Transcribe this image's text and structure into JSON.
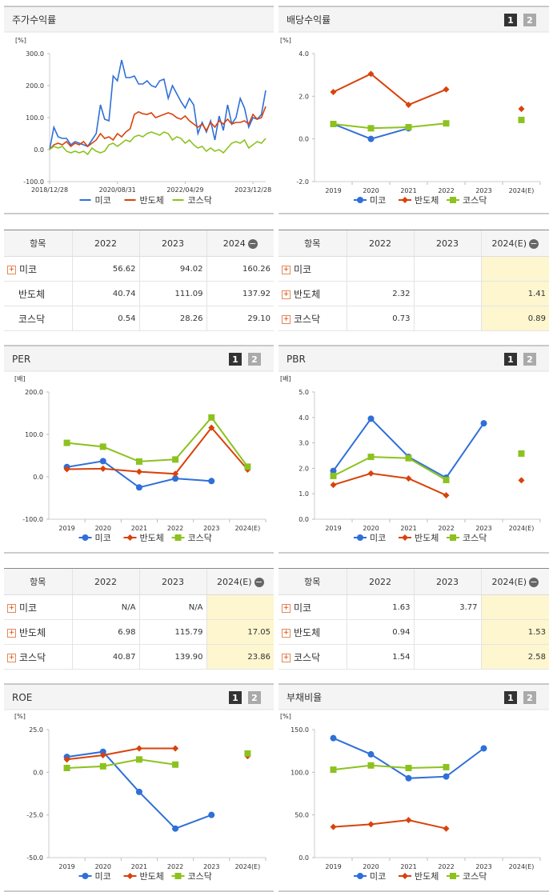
{
  "page_buttons": [
    "1",
    "2"
  ],
  "chart_data": [
    {
      "type": "line",
      "title": "주가수익률",
      "unit": "[%]",
      "xlim": [
        0,
        51
      ],
      "xticks": [
        {
          "value": 0,
          "label": "2018/12/28"
        },
        {
          "value": 16,
          "label": "2020/08/31"
        },
        {
          "value": 32,
          "label": "2022/04/29"
        },
        {
          "value": 48,
          "label": "2023/12/28"
        }
      ],
      "ylim": [
        -100,
        300
      ],
      "yticks": [
        {
          "value": -100,
          "label": "-100.0"
        },
        {
          "value": 0,
          "label": "0.0"
        },
        {
          "value": 100,
          "label": "100.0"
        },
        {
          "value": 200,
          "label": "200.0"
        },
        {
          "value": 300,
          "label": "300.0"
        }
      ],
      "series": [
        {
          "name": "미코",
          "color": "#2f6fd8",
          "values": [
            0,
            70,
            40,
            35,
            35,
            15,
            25,
            20,
            15,
            10,
            30,
            50,
            140,
            95,
            90,
            230,
            215,
            280,
            225,
            225,
            230,
            205,
            205,
            215,
            200,
            195,
            215,
            220,
            160,
            200,
            175,
            150,
            130,
            160,
            140,
            50,
            85,
            55,
            90,
            30,
            105,
            60,
            140,
            80,
            100,
            160,
            130,
            70,
            100,
            95,
            110,
            185
          ]
        },
        {
          "name": "반도체",
          "color": "#d9420b",
          "values": [
            0,
            15,
            20,
            15,
            25,
            10,
            20,
            15,
            25,
            10,
            20,
            30,
            50,
            35,
            40,
            30,
            50,
            40,
            55,
            65,
            110,
            118,
            112,
            110,
            115,
            100,
            105,
            110,
            115,
            110,
            100,
            95,
            105,
            90,
            80,
            70,
            80,
            60,
            85,
            70,
            90,
            80,
            95,
            80,
            85,
            85,
            90,
            80,
            110,
            95,
            100,
            135
          ]
        },
        {
          "name": "코스닥",
          "color": "#8cc21f",
          "values": [
            0,
            10,
            5,
            10,
            -5,
            -10,
            -5,
            -10,
            -5,
            -15,
            5,
            -5,
            -10,
            -5,
            15,
            20,
            10,
            20,
            30,
            25,
            40,
            45,
            40,
            50,
            55,
            50,
            45,
            55,
            50,
            30,
            40,
            35,
            20,
            30,
            15,
            5,
            10,
            -5,
            5,
            -5,
            0,
            -10,
            5,
            20,
            25,
            20,
            30,
            5,
            15,
            25,
            20,
            35
          ]
        }
      ]
    },
    {
      "type": "line",
      "title": "배당수익률",
      "unit": "[%]",
      "categories": [
        "2019",
        "2020",
        "2021",
        "2022",
        "2023",
        "2024(E)"
      ],
      "ylim": [
        -2,
        4
      ],
      "yticks": [
        {
          "value": -2,
          "label": "-2.0"
        },
        {
          "value": 0,
          "label": "0.0"
        },
        {
          "value": 2,
          "label": "2.0"
        },
        {
          "value": 4,
          "label": "4.0"
        }
      ],
      "series": [
        {
          "name": "미코",
          "color": "#2f6fd8",
          "marker": "circle",
          "values": [
            0.7,
            0.0,
            0.5,
            null,
            null,
            null
          ]
        },
        {
          "name": "반도체",
          "color": "#d9420b",
          "marker": "diamond",
          "values": [
            2.2,
            3.05,
            1.6,
            2.32,
            null,
            1.41
          ]
        },
        {
          "name": "코스닥",
          "color": "#8cc21f",
          "marker": "square",
          "values": [
            0.7,
            0.5,
            0.55,
            0.73,
            null,
            0.89
          ]
        }
      ]
    },
    {
      "type": "line",
      "title": "PER",
      "unit": "[배]",
      "categories": [
        "2019",
        "2020",
        "2021",
        "2022",
        "2023",
        "2024(E)"
      ],
      "ylim": [
        -100,
        200
      ],
      "yticks": [
        {
          "value": -100,
          "label": "-100.0"
        },
        {
          "value": 0,
          "label": "0.0"
        },
        {
          "value": 100,
          "label": "100.0"
        },
        {
          "value": 200,
          "label": "200.0"
        }
      ],
      "series": [
        {
          "name": "미코",
          "color": "#2f6fd8",
          "marker": "circle",
          "values": [
            23,
            37,
            -25,
            -4,
            -10,
            null
          ]
        },
        {
          "name": "반도체",
          "color": "#d9420b",
          "marker": "diamond",
          "values": [
            18,
            19,
            12,
            6.98,
            115.79,
            17.05
          ]
        },
        {
          "name": "코스닥",
          "color": "#8cc21f",
          "marker": "square",
          "values": [
            80,
            71,
            36,
            40.87,
            139.9,
            23.86
          ]
        }
      ]
    },
    {
      "type": "line",
      "title": "PBR",
      "unit": "[배]",
      "categories": [
        "2019",
        "2020",
        "2021",
        "2022",
        "2023",
        "2024(E)"
      ],
      "ylim": [
        0,
        5
      ],
      "yticks": [
        {
          "value": 0,
          "label": "0.0"
        },
        {
          "value": 1,
          "label": "1.0"
        },
        {
          "value": 2,
          "label": "2.0"
        },
        {
          "value": 3,
          "label": "3.0"
        },
        {
          "value": 4,
          "label": "4.0"
        },
        {
          "value": 5,
          "label": "5.0"
        }
      ],
      "series": [
        {
          "name": "미코",
          "color": "#2f6fd8",
          "marker": "circle",
          "values": [
            1.9,
            3.95,
            2.45,
            1.63,
            3.77,
            null
          ]
        },
        {
          "name": "반도체",
          "color": "#d9420b",
          "marker": "diamond",
          "values": [
            1.35,
            1.8,
            1.6,
            0.94,
            null,
            1.53
          ]
        },
        {
          "name": "코스닥",
          "color": "#8cc21f",
          "marker": "square",
          "values": [
            1.7,
            2.45,
            2.4,
            1.54,
            null,
            2.58
          ]
        }
      ]
    },
    {
      "type": "line",
      "title": "ROE",
      "unit": "[%]",
      "categories": [
        "2019",
        "2020",
        "2021",
        "2022",
        "2023",
        "2024(E)"
      ],
      "ylim": [
        -50,
        25
      ],
      "yticks": [
        {
          "value": -50,
          "label": "-50.0"
        },
        {
          "value": -25,
          "label": "-25.0"
        },
        {
          "value": 0,
          "label": "0.0"
        },
        {
          "value": 25,
          "label": "25.0"
        }
      ],
      "series": [
        {
          "name": "미코",
          "color": "#2f6fd8",
          "marker": "circle",
          "values": [
            9,
            12,
            -11.5,
            -33,
            -25,
            null
          ]
        },
        {
          "name": "반도체",
          "color": "#d9420b",
          "marker": "diamond",
          "values": [
            7.5,
            10,
            14,
            14,
            null,
            9.5
          ]
        },
        {
          "name": "코스닥",
          "color": "#8cc21f",
          "marker": "square",
          "values": [
            2.5,
            3.5,
            7.5,
            4.5,
            null,
            11
          ]
        }
      ]
    },
    {
      "type": "line",
      "title": "부채비율",
      "unit": "[%]",
      "categories": [
        "2019",
        "2020",
        "2021",
        "2022",
        "2023",
        "2024(E)"
      ],
      "ylim": [
        0,
        150
      ],
      "yticks": [
        {
          "value": 0,
          "label": "0.0"
        },
        {
          "value": 50,
          "label": "50.0"
        },
        {
          "value": 100,
          "label": "100.0"
        },
        {
          "value": 150,
          "label": "150.0"
        }
      ],
      "series": [
        {
          "name": "미코",
          "color": "#2f6fd8",
          "marker": "circle",
          "values": [
            140,
            121,
            93,
            95,
            128,
            null
          ]
        },
        {
          "name": "반도체",
          "color": "#d9420b",
          "marker": "diamond",
          "values": [
            36,
            39,
            44,
            34,
            null,
            null
          ]
        },
        {
          "name": "코스닥",
          "color": "#8cc21f",
          "marker": "square",
          "values": [
            103,
            108,
            105,
            106,
            null,
            null
          ]
        }
      ]
    }
  ],
  "tables": [
    {
      "columns": [
        "항목",
        "2022",
        "2023",
        "2024"
      ],
      "highlight_last": false,
      "rows": [
        {
          "name": "미코",
          "icon": true,
          "cells": [
            "56.62",
            "94.02",
            "160.26"
          ]
        },
        {
          "name": "반도체",
          "icon": false,
          "cells": [
            "40.74",
            "111.09",
            "137.92"
          ]
        },
        {
          "name": "코스닥",
          "icon": false,
          "cells": [
            "0.54",
            "28.26",
            "29.10"
          ]
        }
      ]
    },
    {
      "columns": [
        "항목",
        "2022",
        "2023",
        "2024(E)"
      ],
      "highlight_last": true,
      "rows": [
        {
          "name": "미코",
          "icon": true,
          "cells": [
            null,
            null,
            null
          ]
        },
        {
          "name": "반도체",
          "icon": true,
          "cells": [
            "2.32",
            null,
            "1.41"
          ]
        },
        {
          "name": "코스닥",
          "icon": true,
          "cells": [
            "0.73",
            null,
            "0.89"
          ]
        }
      ]
    },
    {
      "columns": [
        "항목",
        "2022",
        "2023",
        "2024(E)"
      ],
      "highlight_last": true,
      "rows": [
        {
          "name": "미코",
          "icon": true,
          "cells": [
            "N/A",
            "N/A",
            null
          ]
        },
        {
          "name": "반도체",
          "icon": true,
          "cells": [
            "6.98",
            "115.79",
            "17.05"
          ]
        },
        {
          "name": "코스닥",
          "icon": true,
          "cells": [
            "40.87",
            "139.90",
            "23.86"
          ]
        }
      ]
    },
    {
      "columns": [
        "항목",
        "2022",
        "2023",
        "2024(E)"
      ],
      "highlight_last": true,
      "rows": [
        {
          "name": "미코",
          "icon": true,
          "cells": [
            "1.63",
            "3.77",
            null
          ]
        },
        {
          "name": "반도체",
          "icon": true,
          "cells": [
            "0.94",
            null,
            "1.53"
          ]
        },
        {
          "name": "코스닥",
          "icon": true,
          "cells": [
            "1.54",
            null,
            "2.58"
          ]
        }
      ]
    }
  ]
}
